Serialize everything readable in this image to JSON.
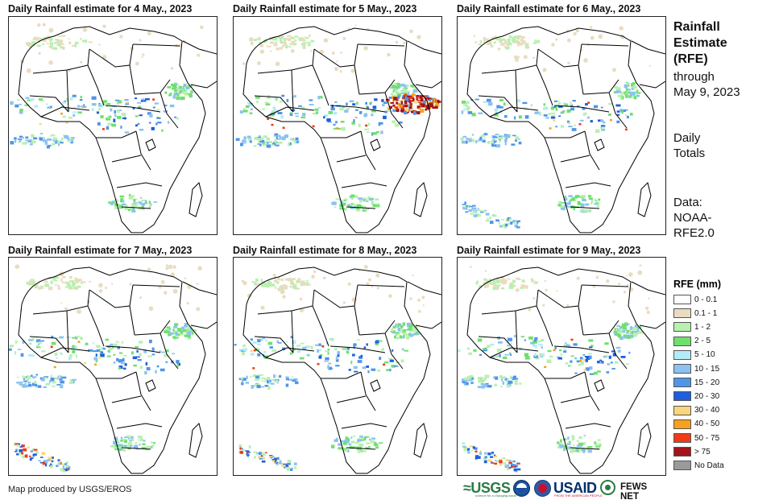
{
  "panels": [
    {
      "title": "Daily Rainfall estimate for 4 May., 2023",
      "rain_level": "moderate"
    },
    {
      "title": "Daily Rainfall estimate for 5 May., 2023",
      "rain_level": "heavy-east"
    },
    {
      "title": "Daily Rainfall estimate for 6 May., 2023",
      "rain_level": "moderate"
    },
    {
      "title": "Daily Rainfall estimate for 7 May., 2023",
      "rain_level": "moderate"
    },
    {
      "title": "Daily Rainfall estimate for 8 May., 2023",
      "rain_level": "moderate"
    },
    {
      "title": "Daily Rainfall estimate for 9 May., 2023",
      "rain_level": "moderate"
    }
  ],
  "side": {
    "title": [
      "Rainfall",
      "Estimate",
      "(RFE)"
    ],
    "through": [
      "through",
      "May 9, 2023"
    ],
    "totals": [
      "Daily",
      "Totals"
    ],
    "data": [
      "Data:",
      "NOAA-",
      "RFE2.0"
    ]
  },
  "legend": {
    "title": "RFE (mm)",
    "items": [
      {
        "label": "0 - 0.1",
        "color": "#ffffff"
      },
      {
        "label": "0.1 - 1",
        "color": "#e9dcc0"
      },
      {
        "label": "1 - 2",
        "color": "#b8f0b0"
      },
      {
        "label": "2 - 5",
        "color": "#6ee06e"
      },
      {
        "label": "5 - 10",
        "color": "#b4ecf5"
      },
      {
        "label": "10 - 15",
        "color": "#8cc2f0"
      },
      {
        "label": "15 - 20",
        "color": "#4f96e8"
      },
      {
        "label": "20 - 30",
        "color": "#1f5fdc"
      },
      {
        "label": "30 - 40",
        "color": "#fad77a"
      },
      {
        "label": "40 - 50",
        "color": "#f6a21e"
      },
      {
        "label": "50 - 75",
        "color": "#ee3b1a"
      },
      {
        "label": "> 75",
        "color": "#a3141c"
      },
      {
        "label": "No Data",
        "color": "#9a9a9a"
      }
    ]
  },
  "footer": {
    "credit": "Map produced by USGS/EROS",
    "logos": {
      "usgs": "≈USGS",
      "usgs_tag": "science for a changing world",
      "usaid": "USAID",
      "usaid_tag": "FROM THE AMERICAN PEOPLE",
      "fews": "FEWS NET"
    }
  }
}
